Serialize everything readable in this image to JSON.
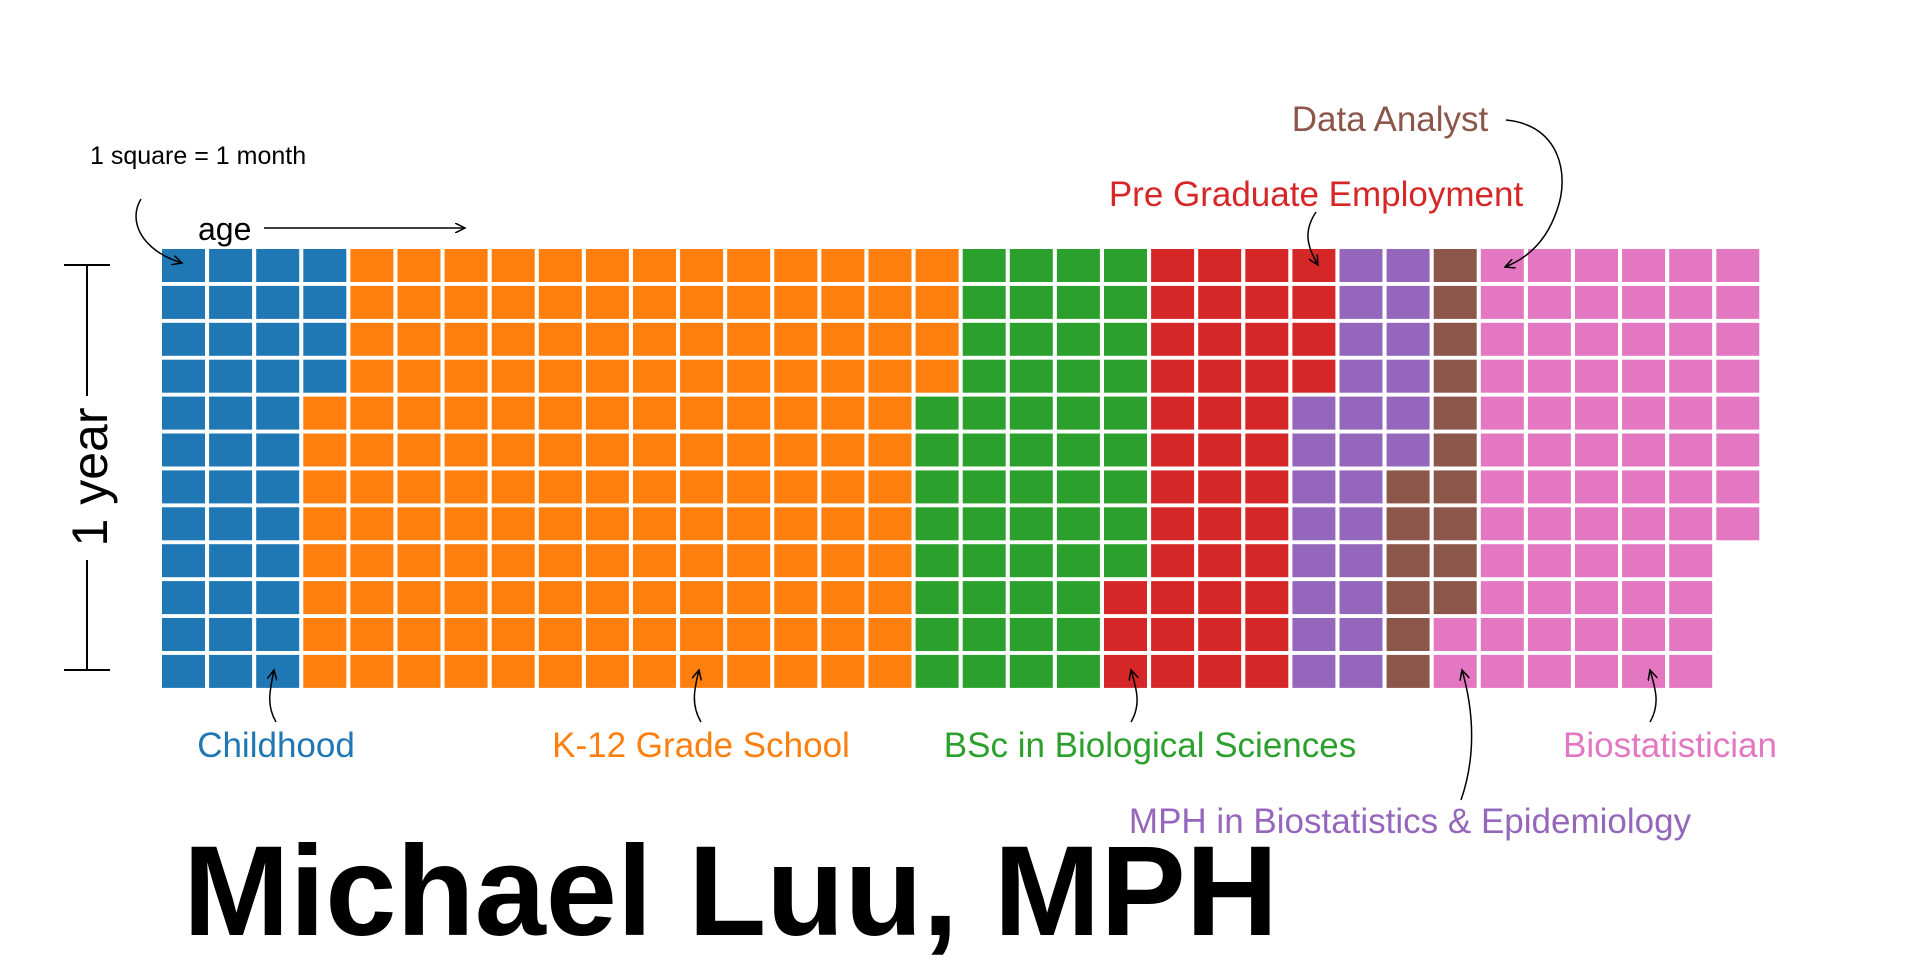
{
  "name": "Michael Luu, MPH",
  "legend_note": "1 square = 1 month",
  "axis_label": "age",
  "year_label": "1 year",
  "chart_data": {
    "type": "waffle",
    "unit": "1 square = 1 month",
    "months_per_column": 12,
    "first_column_offset_months": 8,
    "segments": [
      {
        "label": "Childhood",
        "months": 40,
        "color": "#1f77b4"
      },
      {
        "label": "K-12 Grade School",
        "months": 156,
        "color": "#ff7f0e"
      },
      {
        "label": "BSc in Biological Sciences",
        "months": 53,
        "color": "#2ca02c"
      },
      {
        "label": "Pre Graduate Employment",
        "months": 43,
        "color": "#d62728"
      },
      {
        "label": "MPH in Biostatistics & Epidemiology",
        "months": 26,
        "color": "#9467bd"
      },
      {
        "label": "Data Analyst",
        "months": 16,
        "color": "#8c564b"
      },
      {
        "label": "Biostatistician",
        "months": 70,
        "color": "#e377c2"
      }
    ]
  }
}
